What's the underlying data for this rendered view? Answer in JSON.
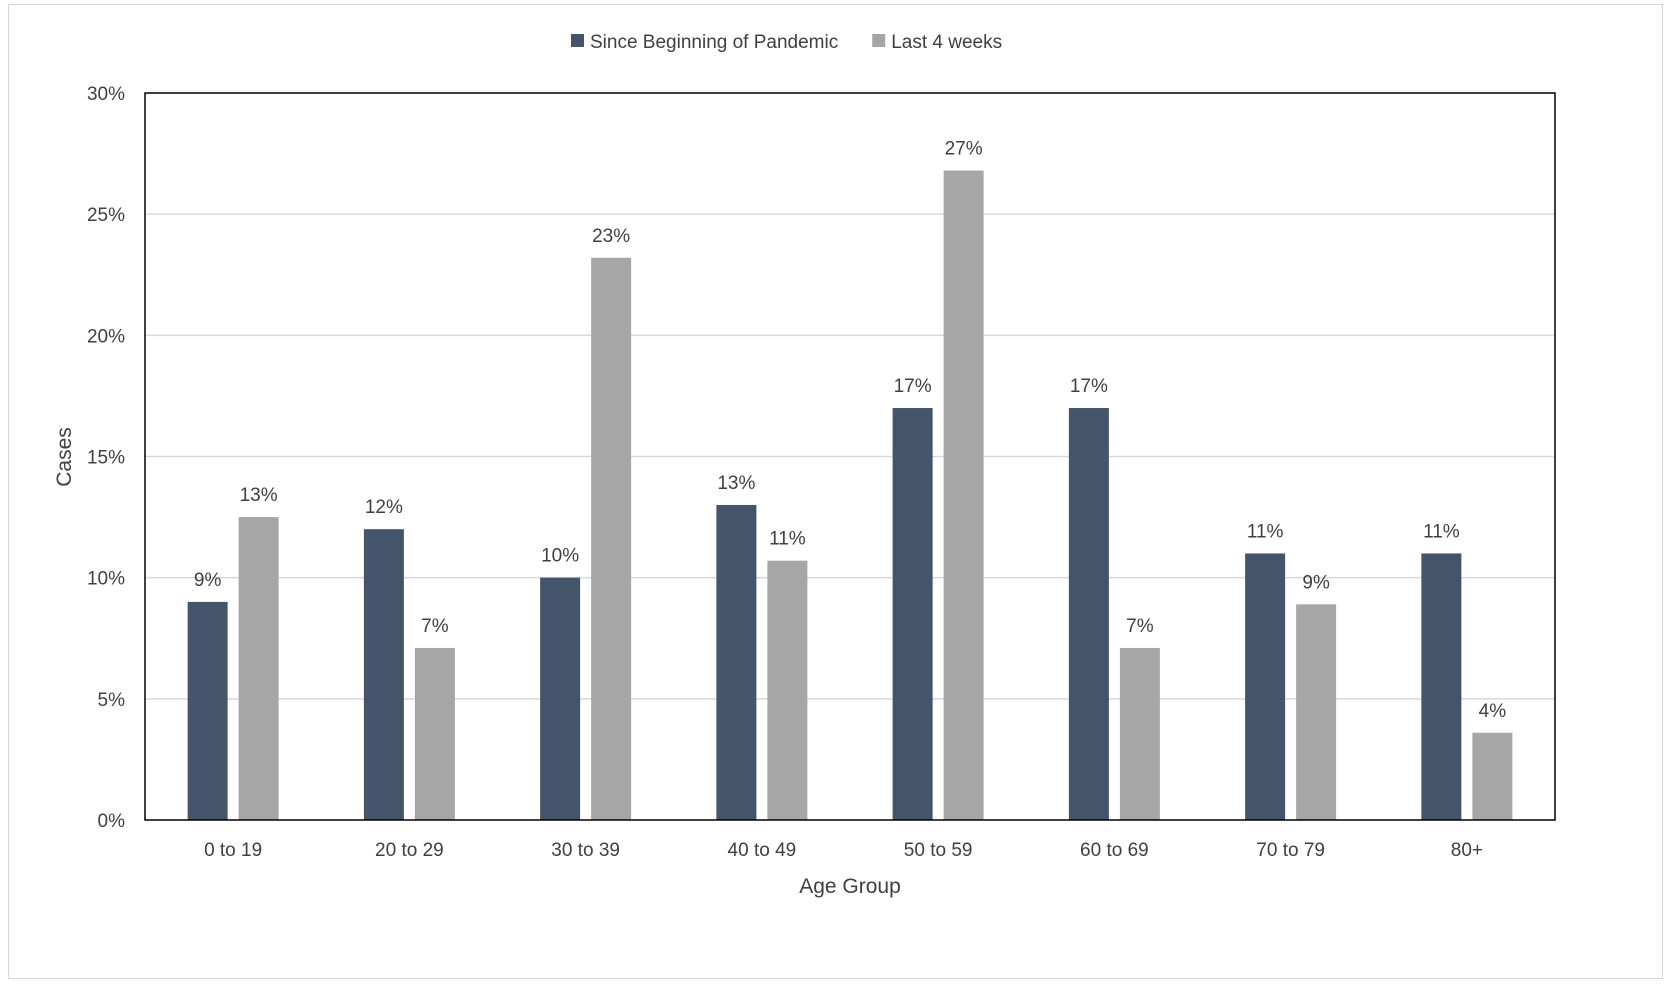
{
  "chart_data": {
    "type": "bar",
    "title": "",
    "xlabel": "Age Group",
    "ylabel": "Cases",
    "ylim": [
      0,
      30
    ],
    "y_ticks": [
      "0%",
      "5%",
      "10%",
      "15%",
      "20%",
      "25%",
      "30%"
    ],
    "y_tick_values": [
      0,
      5,
      10,
      15,
      20,
      25,
      30
    ],
    "categories": [
      "0 to 19",
      "20 to 29",
      "30 to 39",
      "40 to 49",
      "50 to 59",
      "60 to 69",
      "70 to 79",
      "80+"
    ],
    "series": [
      {
        "name": "Since Beginning of Pandemic",
        "color": "#44546A",
        "values": [
          9,
          12,
          10,
          13,
          17,
          17,
          11,
          11
        ],
        "labels": [
          "9%",
          "12%",
          "10%",
          "13%",
          "17%",
          "17%",
          "11%",
          "11%"
        ]
      },
      {
        "name": "Last 4 weeks",
        "color": "#A6A6A6",
        "values": [
          12.5,
          7.1,
          23.2,
          10.7,
          26.8,
          7.1,
          8.9,
          3.6
        ],
        "labels": [
          "13%",
          "7%",
          "23%",
          "11%",
          "27%",
          "7%",
          "9%",
          "4%"
        ]
      }
    ],
    "grid": true,
    "legend_position": "top-center"
  }
}
